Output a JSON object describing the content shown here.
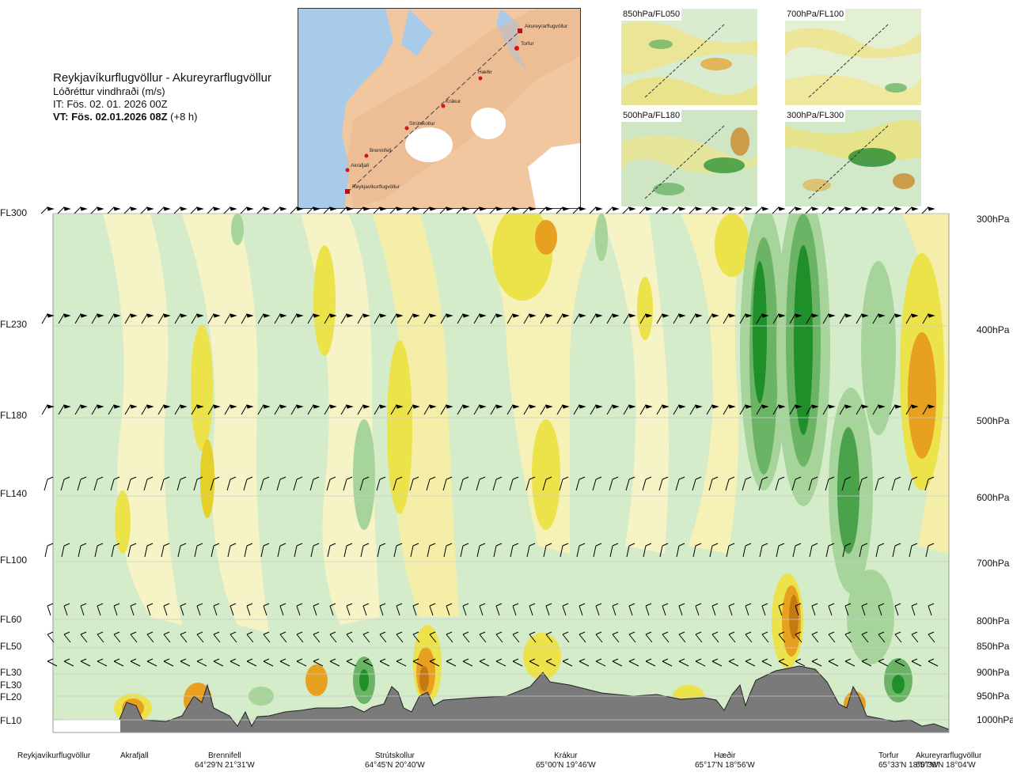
{
  "header": {
    "title": "Reykjavíkurflugvöllur - Akureyrarflugvöllur",
    "subtitle": "Lóðréttur vindhraði (m/s)",
    "it_line": "IT: Fös. 02. 01. 2026 00Z",
    "vt_bold": "VT: Fös. 02.01.2026 08Z",
    "vt_suffix": " (+8 h)"
  },
  "map": {
    "points": [
      {
        "name": "Akureyrarflugvöllur"
      },
      {
        "name": "Torfur"
      },
      {
        "name": "Hæðir"
      },
      {
        "name": "Krákur"
      },
      {
        "name": "Strútskollur"
      },
      {
        "name": "Brennifell"
      },
      {
        "name": "Akrafjall"
      },
      {
        "name": "Reykjavíkurflugvöllur"
      }
    ]
  },
  "panels": [
    {
      "label": "850hPa/FL050"
    },
    {
      "label": "700hPa/FL100"
    },
    {
      "label": "500hPa/FL180"
    },
    {
      "label": "300hPa/FL300"
    }
  ],
  "levels": [
    {
      "fl": "FL300",
      "hpa": "300hPa"
    },
    {
      "fl": "FL230",
      "hpa": "400hPa"
    },
    {
      "fl": "FL180",
      "hpa": "500hPa"
    },
    {
      "fl": "FL140",
      "hpa": "600hPa"
    },
    {
      "fl": "FL100",
      "hpa": "700hPa"
    },
    {
      "fl": "FL60",
      "hpa": "800hPa"
    },
    {
      "fl": "FL50",
      "hpa": "850hPa"
    },
    {
      "fl": "FL30",
      "hpa": "900hPa"
    },
    {
      "fl": "FL30",
      "hpa": ""
    },
    {
      "fl": "FL20",
      "hpa": "950hPa"
    },
    {
      "fl": "FL10",
      "hpa": "1000hPa"
    }
  ],
  "stations": [
    {
      "name": "Reykjavíkurflugvöllur",
      "coord": ""
    },
    {
      "name": "Akrafjall",
      "coord": ""
    },
    {
      "name": "Brennifell",
      "coord": "64°29'N 21°31'W"
    },
    {
      "name": "Strútskollur",
      "coord": "64°45'N 20°40'W"
    },
    {
      "name": "Krákur",
      "coord": "65°00'N 19°46'W"
    },
    {
      "name": "Hæðir",
      "coord": "65°17'N 18°56'W"
    },
    {
      "name": "Torfur",
      "coord": "65°33'N 18°07'W"
    },
    {
      "name": "Akureyrarflugvöllur",
      "coord": "65°39'N 18°04'W"
    }
  ],
  "chart_data": {
    "type": "heatmap",
    "title": "Lóðréttur vindhraði (m/s)",
    "xlabel": "",
    "ylabel": "",
    "y_levels_hpa": [
      300,
      400,
      500,
      600,
      700,
      800,
      850,
      900,
      950,
      1000
    ],
    "x_stations": [
      "Reykjavíkurflugvöllur",
      "Akrafjall",
      "Brennifell",
      "Strútskollur",
      "Krákur",
      "Hæðir",
      "Torfur",
      "Akureyrarflugvöllur"
    ],
    "colors": {
      "strong_up": "#c47a10",
      "up": "#e8a020",
      "weak_up": "#e8d840",
      "slight_up": "#f3eca0",
      "neutral": "#f7fae8",
      "slight_down": "#cfe9c8",
      "weak_down": "#a6d49a",
      "down": "#6cb465",
      "strong_down": "#1f8f2a",
      "terrain": "#7a7a7a"
    },
    "features": [
      {
        "station": "Akrafjall",
        "sign": "up",
        "level_hpa": 970
      },
      {
        "station": "Brennifell",
        "sign": "up",
        "level_hpa": 960
      },
      {
        "station": "Strútskollur",
        "sign": "up",
        "level_hpa": 920
      },
      {
        "station": "Hæðir",
        "sign": "up",
        "level_hpa": 840
      },
      {
        "station": "Hæðir",
        "sign": "down",
        "level_hpa": 450
      },
      {
        "station": "Torfur",
        "sign": "down",
        "level_hpa": 580
      },
      {
        "station": "Torfur",
        "sign": "down",
        "level_hpa": 940
      },
      {
        "station": "Akureyrarflugvöllur",
        "sign": "up",
        "level_hpa": 480
      }
    ]
  }
}
